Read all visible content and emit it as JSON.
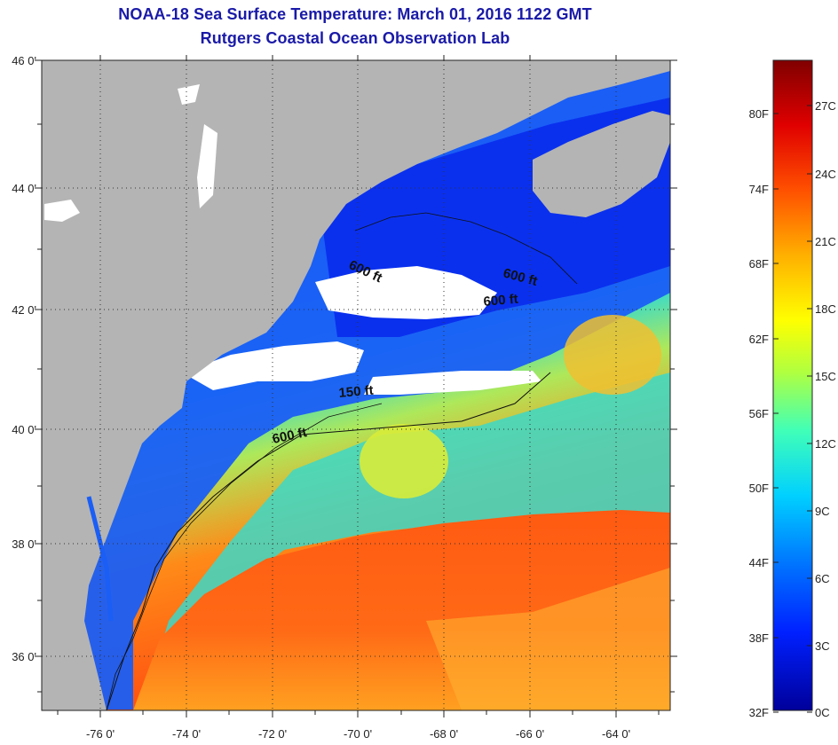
{
  "title": "NOAA-18 Sea Surface Temperature:  March 01, 2016 1122 GMT",
  "subtitle": "Rutgers Coastal Ocean Observation Lab",
  "map": {
    "lon_ticks": [
      "-76 0'",
      "-74 0'",
      "-72 0'",
      "-70 0'",
      "-68 0'",
      "-66 0'",
      "-64 0'"
    ],
    "lat_ticks": [
      "46 0'",
      "44 0'",
      "42 0'",
      "40 0'",
      "38 0'",
      "36 0'"
    ],
    "contour_labels": [
      "600 ft",
      "600 ft",
      "600 ft",
      "150 ft",
      "600 ft"
    ],
    "colors": {
      "land": "#b4b4b4",
      "cloud": "#ffffff",
      "cold_water": "#0a3cf0",
      "warm_water": "#ff4a10"
    }
  },
  "colorbar": {
    "fahrenheit": [
      "80F",
      "74F",
      "68F",
      "62F",
      "56F",
      "50F",
      "44F",
      "38F",
      "32F"
    ],
    "celsius": [
      "27C",
      "24C",
      "21C",
      "18C",
      "15C",
      "12C",
      "9C",
      "6C",
      "3C",
      "0C"
    ]
  }
}
